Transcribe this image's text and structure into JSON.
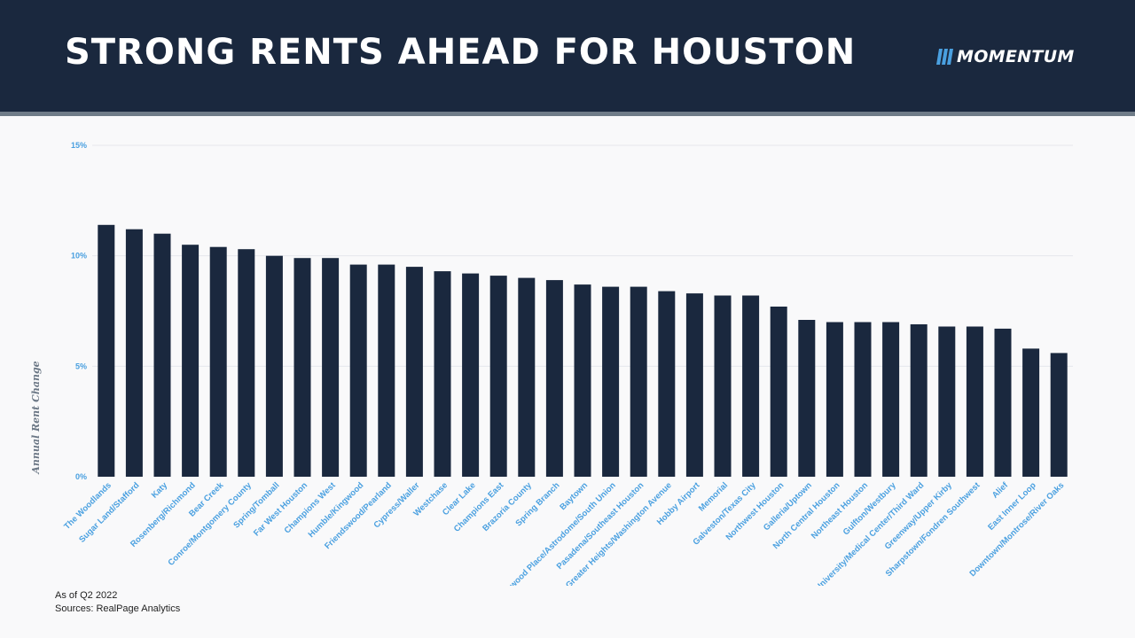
{
  "header": {
    "title": "STRONG RENTS AHEAD FOR HOUSTON",
    "logo_text": "MOMENTUM",
    "logo_icon": "three-slanted-bars-icon",
    "background_color": "#1a283e",
    "accent_color": "#4aa0e0"
  },
  "chart_data": {
    "type": "bar",
    "title": "",
    "xlabel": "",
    "ylabel": "Annual Rent Change",
    "ylim": [
      0,
      15
    ],
    "yticks": [
      0,
      5,
      10,
      15
    ],
    "ytick_labels": [
      "0%",
      "5%",
      "10%",
      "15%"
    ],
    "grid": true,
    "bar_color": "#1a283e",
    "categories": [
      "The Woodlands",
      "Sugar Land/Stafford",
      "Katy",
      "Rosenberg/Richmond",
      "Bear Creek",
      "Conroe/Montgomery County",
      "Spring/Tomball",
      "Far West Houston",
      "Champions West",
      "Humble/Kingwood",
      "Friendswood/Pearland",
      "Cypress/Waller",
      "Westchase",
      "Clear Lake",
      "Champions East",
      "Brazoria County",
      "Spring Branch",
      "Baytown",
      "Braeswood Place/Astrodome/South Union",
      "Pasadena/Southeast Houston",
      "Greater Heights/Washington Avenue",
      "Hobby Airport",
      "Memorial",
      "Galveston/Texas City",
      "Northwest Houston",
      "Galleria/Uptown",
      "North Central Houston",
      "Northeast Houston",
      "Gulfton/Westbury",
      "West University/Medical Center/Third Ward",
      "Greenway/Upper Kirby",
      "Sharpstown/Fondren Southwest",
      "Alief",
      "East Inner Loop",
      "Downtown/Montrose/River Oaks"
    ],
    "values": [
      11.4,
      11.2,
      11.0,
      10.5,
      10.4,
      10.3,
      10.0,
      9.9,
      9.9,
      9.6,
      9.6,
      9.5,
      9.3,
      9.2,
      9.1,
      9.0,
      8.9,
      8.7,
      8.6,
      8.6,
      8.4,
      8.3,
      8.2,
      8.2,
      7.7,
      7.1,
      7.0,
      7.0,
      7.0,
      6.9,
      6.8,
      6.8,
      6.7,
      5.8,
      5.6
    ]
  },
  "footnote": {
    "as_of": "As of Q2 2022",
    "sources": "Sources: RealPage Analytics"
  }
}
